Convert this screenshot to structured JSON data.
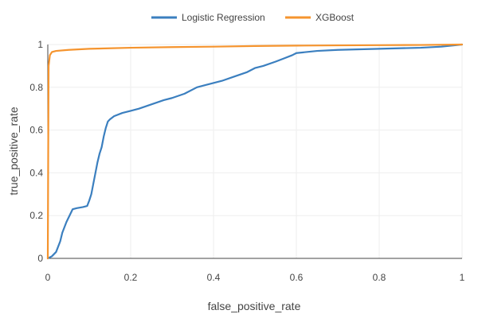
{
  "chart_data": {
    "type": "line",
    "xlabel": "false_positive_rate",
    "ylabel": "true_positive_rate",
    "xlim": [
      0,
      1
    ],
    "ylim": [
      0,
      1
    ],
    "grid": true,
    "legend_position": "top-center",
    "x_ticks": [
      "0",
      "0.2",
      "0.4",
      "0.6",
      "0.8",
      "1"
    ],
    "y_ticks": [
      "0",
      "0.2",
      "0.4",
      "0.6",
      "0.8",
      "1"
    ],
    "series": [
      {
        "name": "Logistic Regression",
        "color": "#3b7fbf",
        "x": [
          0,
          0.01,
          0.02,
          0.03,
          0.035,
          0.045,
          0.055,
          0.06,
          0.07,
          0.085,
          0.095,
          0.1,
          0.105,
          0.11,
          0.115,
          0.12,
          0.125,
          0.13,
          0.135,
          0.14,
          0.145,
          0.15,
          0.16,
          0.18,
          0.2,
          0.22,
          0.25,
          0.28,
          0.3,
          0.33,
          0.36,
          0.38,
          0.42,
          0.45,
          0.48,
          0.5,
          0.52,
          0.55,
          0.57,
          0.59,
          0.6,
          0.65,
          0.7,
          0.8,
          0.9,
          0.95,
          1
        ],
        "y": [
          0,
          0.01,
          0.03,
          0.08,
          0.12,
          0.17,
          0.21,
          0.23,
          0.235,
          0.24,
          0.245,
          0.27,
          0.3,
          0.35,
          0.4,
          0.45,
          0.49,
          0.52,
          0.57,
          0.61,
          0.64,
          0.65,
          0.665,
          0.68,
          0.69,
          0.7,
          0.72,
          0.74,
          0.75,
          0.77,
          0.8,
          0.81,
          0.83,
          0.85,
          0.87,
          0.89,
          0.9,
          0.92,
          0.935,
          0.95,
          0.96,
          0.97,
          0.975,
          0.98,
          0.985,
          0.99,
          1
        ]
      },
      {
        "name": "XGBoost",
        "color": "#f5942e",
        "x": [
          0,
          0.001,
          0.002,
          0.005,
          0.01,
          0.02,
          0.05,
          0.1,
          0.2,
          0.3,
          0.4,
          0.5,
          0.6,
          0.7,
          0.8,
          0.9,
          1
        ],
        "y": [
          0,
          0.5,
          0.9,
          0.95,
          0.965,
          0.97,
          0.975,
          0.98,
          0.985,
          0.988,
          0.99,
          0.993,
          0.995,
          0.996,
          0.997,
          0.998,
          1
        ]
      }
    ]
  }
}
